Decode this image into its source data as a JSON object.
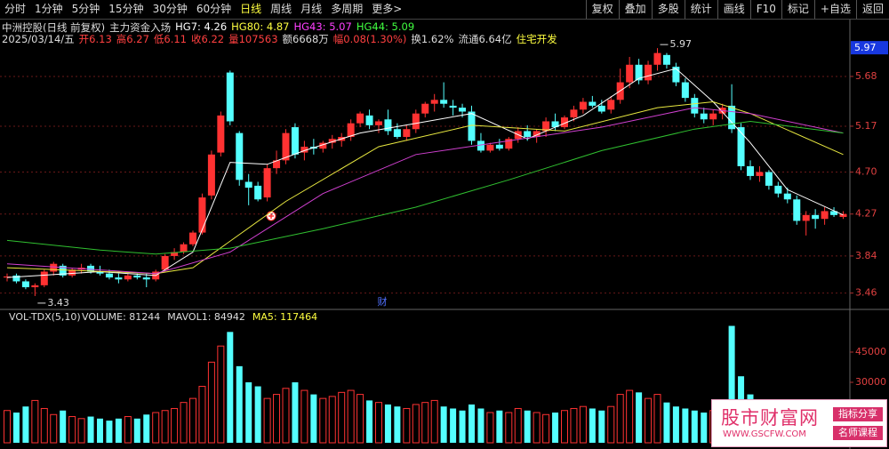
{
  "toolbar": {
    "left": [
      "分时",
      "1分钟",
      "5分钟",
      "15分钟",
      "30分钟",
      "60分钟",
      "日线",
      "周线",
      "月线",
      "多周期",
      "更多>"
    ],
    "active": 6,
    "right": [
      "复权",
      "叠加",
      "多股",
      "统计",
      "画线",
      "F10",
      "标记",
      "+自选",
      "返回"
    ]
  },
  "info": {
    "name": "中洲控股(日线 前复权)",
    "indicator": "主力资金入场",
    "hg": [
      {
        "text": "HG7: 4.26",
        "color": "#ffffff"
      },
      {
        "text": "HG80: 4.87",
        "color": "#ffff40"
      },
      {
        "text": "HG43: 5.07",
        "color": "#ff40ff"
      },
      {
        "text": "HG44: 5.09",
        "color": "#40ff40"
      }
    ]
  },
  "quote": [
    {
      "text": "2025/03/14/五",
      "color": "#dddddd"
    },
    {
      "text": "开6.13",
      "color": "#ff4040"
    },
    {
      "text": "高6.27",
      "color": "#ff4040"
    },
    {
      "text": "低6.11",
      "color": "#ff4040"
    },
    {
      "text": "收6.22",
      "color": "#ff4040"
    },
    {
      "text": "量107563",
      "color": "#ff4040"
    },
    {
      "text": "额6668万",
      "color": "#dddddd"
    },
    {
      "text": "幅0.08(1.30%)",
      "color": "#ff4040"
    },
    {
      "text": "换1.62%",
      "color": "#dddddd"
    },
    {
      "text": "流通6.64亿",
      "color": "#dddddd"
    },
    {
      "text": "住宅开发",
      "color": "#ffff40"
    }
  ],
  "marker_text": "财",
  "chart_data": [
    {
      "type": "candlestick",
      "ylim": [
        3.32,
        6.19
      ],
      "yticks": [
        3.46,
        3.84,
        4.27,
        {
          "value": 4.7,
          "label": "4.70"
        },
        5.17,
        5.68
      ],
      "grid": true,
      "up_color": "#ff3232",
      "down_color": "#54ffff",
      "price_marker": 5.97,
      "annotations": [
        {
          "index": 70,
          "value": 5.97
        },
        {
          "index": 3,
          "value": 3.43
        }
      ],
      "ohlc": [
        [
          3.62,
          3.66,
          3.58,
          3.63
        ],
        [
          3.64,
          3.66,
          3.56,
          3.58
        ],
        [
          3.58,
          3.6,
          3.5,
          3.52
        ],
        [
          3.52,
          3.56,
          3.43,
          3.54
        ],
        [
          3.54,
          3.7,
          3.52,
          3.68
        ],
        [
          3.68,
          3.78,
          3.64,
          3.76
        ],
        [
          3.74,
          3.76,
          3.62,
          3.64
        ],
        [
          3.64,
          3.72,
          3.62,
          3.7
        ],
        [
          3.7,
          3.76,
          3.66,
          3.72
        ],
        [
          3.74,
          3.76,
          3.66,
          3.68
        ],
        [
          3.68,
          3.74,
          3.64,
          3.66
        ],
        [
          3.66,
          3.7,
          3.6,
          3.62
        ],
        [
          3.62,
          3.66,
          3.56,
          3.6
        ],
        [
          3.6,
          3.66,
          3.58,
          3.64
        ],
        [
          3.64,
          3.66,
          3.6,
          3.62
        ],
        [
          3.62,
          3.66,
          3.52,
          3.6
        ],
        [
          3.6,
          3.7,
          3.58,
          3.68
        ],
        [
          3.7,
          3.86,
          3.68,
          3.84
        ],
        [
          3.84,
          3.92,
          3.8,
          3.88
        ],
        [
          3.88,
          3.98,
          3.86,
          3.96
        ],
        [
          3.96,
          4.1,
          3.94,
          4.08
        ],
        [
          4.08,
          4.48,
          4.06,
          4.44
        ],
        [
          4.46,
          4.92,
          4.42,
          4.88
        ],
        [
          4.9,
          5.32,
          4.86,
          5.28
        ],
        [
          5.72,
          5.74,
          5.18,
          5.22
        ],
        [
          5.1,
          5.12,
          4.56,
          4.62
        ],
        [
          4.6,
          4.68,
          4.36,
          4.54
        ],
        [
          4.56,
          4.6,
          4.4,
          4.42
        ],
        [
          4.44,
          4.78,
          4.4,
          4.74
        ],
        [
          4.74,
          4.92,
          4.68,
          4.82
        ],
        [
          4.82,
          5.14,
          4.78,
          5.1
        ],
        [
          5.16,
          5.2,
          4.84,
          4.88
        ],
        [
          4.9,
          5.02,
          4.82,
          4.96
        ],
        [
          4.96,
          5.04,
          4.88,
          4.94
        ],
        [
          4.94,
          5.02,
          4.9,
          5.0
        ],
        [
          5.0,
          5.08,
          4.94,
          5.04
        ],
        [
          5.02,
          5.1,
          4.96,
          5.06
        ],
        [
          5.06,
          5.24,
          5.02,
          5.2
        ],
        [
          5.2,
          5.32,
          5.16,
          5.3
        ],
        [
          5.28,
          5.34,
          5.14,
          5.18
        ],
        [
          5.18,
          5.24,
          5.1,
          5.22
        ],
        [
          5.24,
          5.34,
          5.08,
          5.12
        ],
        [
          5.14,
          5.2,
          5.04,
          5.06
        ],
        [
          5.06,
          5.18,
          5.02,
          5.14
        ],
        [
          5.14,
          5.34,
          5.1,
          5.3
        ],
        [
          5.3,
          5.42,
          5.26,
          5.4
        ],
        [
          5.4,
          5.5,
          5.32,
          5.44
        ],
        [
          5.44,
          5.62,
          5.36,
          5.4
        ],
        [
          5.38,
          5.44,
          5.28,
          5.36
        ],
        [
          5.36,
          5.4,
          5.26,
          5.32
        ],
        [
          5.32,
          5.38,
          4.98,
          5.02
        ],
        [
          5.02,
          5.1,
          4.9,
          4.92
        ],
        [
          4.92,
          5.0,
          4.9,
          4.98
        ],
        [
          4.98,
          5.04,
          4.92,
          4.94
        ],
        [
          4.94,
          5.06,
          4.92,
          5.04
        ],
        [
          5.04,
          5.16,
          5.0,
          5.12
        ],
        [
          5.12,
          5.18,
          5.02,
          5.06
        ],
        [
          5.06,
          5.14,
          5.0,
          5.12
        ],
        [
          5.12,
          5.26,
          5.06,
          5.22
        ],
        [
          5.22,
          5.3,
          5.12,
          5.16
        ],
        [
          5.16,
          5.28,
          5.14,
          5.26
        ],
        [
          5.26,
          5.38,
          5.22,
          5.34
        ],
        [
          5.34,
          5.46,
          5.3,
          5.42
        ],
        [
          5.42,
          5.48,
          5.36,
          5.38
        ],
        [
          5.38,
          5.44,
          5.3,
          5.32
        ],
        [
          5.34,
          5.48,
          5.3,
          5.44
        ],
        [
          5.44,
          5.76,
          5.4,
          5.62
        ],
        [
          5.62,
          5.88,
          5.56,
          5.8
        ],
        [
          5.8,
          5.86,
          5.6,
          5.64
        ],
        [
          5.64,
          5.84,
          5.6,
          5.8
        ],
        [
          5.8,
          5.97,
          5.74,
          5.92
        ],
        [
          5.9,
          5.92,
          5.76,
          5.8
        ],
        [
          5.78,
          5.82,
          5.58,
          5.62
        ],
        [
          5.62,
          5.66,
          5.42,
          5.46
        ],
        [
          5.46,
          5.5,
          5.26,
          5.3
        ],
        [
          5.3,
          5.36,
          5.2,
          5.24
        ],
        [
          5.24,
          5.34,
          5.18,
          5.3
        ],
        [
          5.3,
          5.4,
          5.24,
          5.36
        ],
        [
          5.38,
          5.6,
          5.1,
          5.14
        ],
        [
          5.16,
          5.2,
          4.72,
          4.76
        ],
        [
          4.76,
          4.82,
          4.62,
          4.66
        ],
        [
          4.66,
          4.76,
          4.6,
          4.7
        ],
        [
          4.7,
          4.72,
          4.52,
          4.56
        ],
        [
          4.56,
          4.6,
          4.44,
          4.48
        ],
        [
          4.48,
          4.54,
          4.38,
          4.42
        ],
        [
          4.42,
          4.46,
          4.16,
          4.2
        ],
        [
          4.2,
          4.3,
          4.05,
          4.26
        ],
        [
          4.26,
          4.32,
          4.12,
          4.22
        ],
        [
          4.22,
          4.34,
          4.16,
          4.3
        ],
        [
          4.3,
          4.34,
          4.24,
          4.26
        ],
        [
          4.24,
          4.3,
          4.22,
          4.27
        ]
      ],
      "lines": [
        {
          "color": "#ffffff",
          "x": [
            0,
            10,
            16,
            20,
            24,
            28,
            32,
            38,
            44,
            50,
            56,
            62,
            68,
            72,
            76,
            80,
            84,
            90
          ],
          "values": [
            3.62,
            3.68,
            3.64,
            3.88,
            4.8,
            4.78,
            4.92,
            5.1,
            5.2,
            5.3,
            5.04,
            5.28,
            5.66,
            5.76,
            5.42,
            5.0,
            4.52,
            4.26
          ]
        },
        {
          "color": "#e8e840",
          "x": [
            0,
            16,
            20,
            30,
            40,
            50,
            60,
            70,
            76,
            80,
            90
          ],
          "values": [
            3.72,
            3.66,
            3.72,
            4.4,
            4.96,
            5.18,
            5.12,
            5.36,
            5.42,
            5.3,
            4.88
          ]
        },
        {
          "color": "#d040d0",
          "x": [
            0,
            16,
            24,
            34,
            44,
            54,
            64,
            74,
            80,
            90
          ],
          "values": [
            3.76,
            3.66,
            3.88,
            4.48,
            4.88,
            5.02,
            5.16,
            5.36,
            5.3,
            5.1
          ]
        },
        {
          "color": "#30c030",
          "x": [
            0,
            10,
            16,
            24,
            34,
            44,
            54,
            64,
            74,
            80,
            90
          ],
          "values": [
            4.0,
            3.9,
            3.86,
            3.92,
            4.12,
            4.34,
            4.62,
            4.92,
            5.14,
            5.22,
            5.1
          ]
        }
      ]
    },
    {
      "type": "bar",
      "title": "VOL-TDX(5,10)",
      "header": [
        {
          "text": "VOLUME: 81244",
          "color": "#dddddd"
        },
        {
          "text": "MAVOL1: 84942",
          "color": "#dddddd"
        },
        {
          "text": "MA5: 117464",
          "color": "#ffff40"
        }
      ],
      "ylim": [
        0,
        60000
      ],
      "yticks": [
        30000,
        45000
      ],
      "up_color": "#ff3232",
      "down_color": "#54ffff",
      "values": [
        16000,
        15000,
        18000,
        21000,
        17000,
        14000,
        16000,
        13000,
        12000,
        13000,
        12000,
        11000,
        12000,
        13000,
        12000,
        14000,
        15000,
        16000,
        17000,
        20000,
        22000,
        28000,
        40000,
        48000,
        55000,
        38000,
        30000,
        28000,
        22000,
        24000,
        27000,
        30000,
        26000,
        24000,
        22000,
        23000,
        25000,
        26000,
        24000,
        21000,
        20000,
        19000,
        18000,
        17000,
        19000,
        20000,
        21000,
        18000,
        17000,
        16000,
        19000,
        17000,
        15000,
        16000,
        15000,
        17000,
        16000,
        15000,
        14000,
        15000,
        16000,
        17000,
        18000,
        17000,
        16000,
        18000,
        24000,
        26000,
        25000,
        22000,
        24000,
        20000,
        18000,
        17000,
        16000,
        15000,
        16000,
        15000,
        58000,
        33000,
        24000,
        18000,
        16000,
        15000,
        14000,
        16000,
        15000,
        14000,
        13000,
        12000,
        11000
      ]
    }
  ],
  "watermark": {
    "title": "股市财富网",
    "url": "WWW.GSCFW.COM",
    "tags": [
      "指标分享",
      "名师课程"
    ]
  }
}
